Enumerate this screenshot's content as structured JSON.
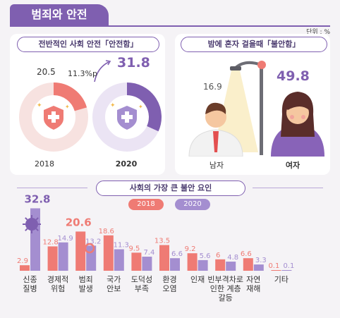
{
  "header": {
    "title": "범죄와 안전",
    "unit": "단위 : %"
  },
  "overall": {
    "pill": "전반적인 사회 안전「안전함」",
    "value_2018": "20.5",
    "value_2020": "31.8",
    "change": "11.3%p",
    "year_2018": "2018",
    "year_2020": "2020"
  },
  "night": {
    "pill": "밤에 혼자 걸을때「불안함」",
    "male_value": "16.9",
    "female_value": "49.8",
    "male_label": "남자",
    "female_label": "여자"
  },
  "factors": {
    "pill": "사회의 가장 큰 불안 요인",
    "legend_2018": "2018",
    "legend_2020": "2020"
  },
  "colors": {
    "c2018": "#ef7b74",
    "c2020": "#a48ed0",
    "accent": "#7f5fb0"
  },
  "chart_data": [
    {
      "type": "pie",
      "title": "전반적인 사회 안전「안전함」",
      "categories": [
        "2018",
        "2020"
      ],
      "values": [
        20.5,
        31.8
      ],
      "change": "11.3%p"
    },
    {
      "type": "bar",
      "title": "밤에 혼자 걸을때「불안함」",
      "categories": [
        "남자",
        "여자"
      ],
      "values": [
        16.9,
        49.8
      ]
    },
    {
      "type": "bar",
      "title": "사회의 가장 큰 불안 요인",
      "categories": [
        "신종\n질병",
        "경제적\n위험",
        "범죄\n발생",
        "국가\n안보",
        "도덕성\n부족",
        "환경\n오염",
        "인재",
        "빈부격차로\n인한 계층\n갈등",
        "자연\n재해",
        "기타"
      ],
      "series": [
        {
          "name": "2018",
          "values": [
            2.9,
            12.8,
            20.6,
            18.6,
            9.5,
            13.5,
            9.2,
            6.0,
            6.6,
            0.1
          ]
        },
        {
          "name": "2020",
          "values": [
            32.8,
            14.9,
            13.2,
            11.3,
            7.4,
            6.6,
            5.6,
            4.8,
            3.3,
            0.1
          ]
        }
      ]
    }
  ]
}
